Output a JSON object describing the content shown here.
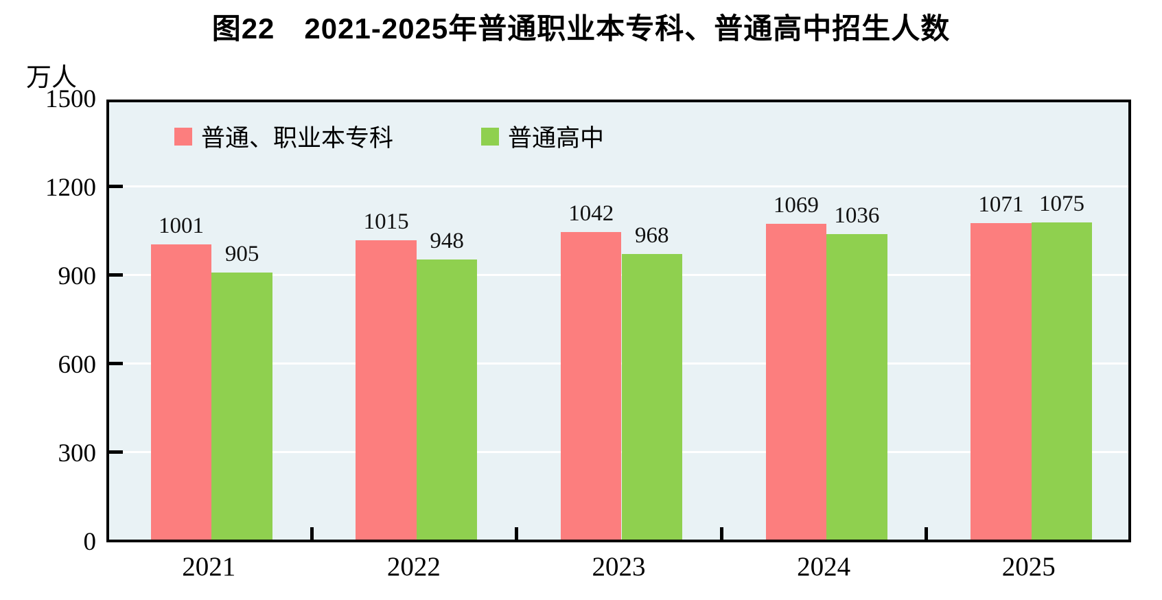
{
  "title": "图22　2021-2025年普通职业本专科、普通高中招生人数",
  "chart_data": {
    "type": "bar",
    "title": "图22　2021-2025年普通职业本专科、普通高中招生人数",
    "categories": [
      "2021",
      "2022",
      "2023",
      "2024",
      "2025"
    ],
    "series": [
      {
        "name": "普通、职业本专科",
        "color": "#FC7E7E",
        "values": [
          1001,
          1015,
          1042,
          1069,
          1071
        ]
      },
      {
        "name": "普通高中",
        "color": "#8FD04F",
        "values": [
          905,
          948,
          968,
          1036,
          1075
        ]
      }
    ],
    "xlabel": "",
    "ylabel": "万人",
    "ylim": [
      0,
      1500
    ],
    "yticks": [
      0,
      300,
      600,
      900,
      1200,
      1500
    ],
    "grid": true,
    "gridline_color": "#FFFFFF",
    "plot_background": "#E9F2F5",
    "outer_background": "#FFFFFF",
    "axis_color": "#000000",
    "legend_position": "top-left-inside",
    "value_labels": true
  }
}
